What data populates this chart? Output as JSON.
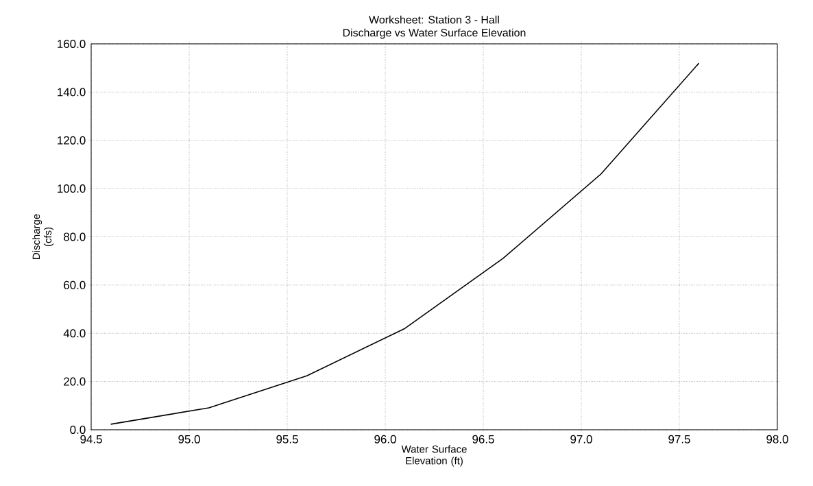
{
  "chart_data": {
    "type": "line",
    "title": "Worksheet: Station 3 - Hall",
    "subtitle": "Discharge vs Water Surface Elevation",
    "xlabel": "Water Surface Elevation (ft)",
    "ylabel": "Discharge (cfs)",
    "x": [
      94.6,
      95.1,
      95.6,
      96.1,
      96.6,
      97.1,
      97.6
    ],
    "series": [
      {
        "color": "#000000",
        "values": [
          2.3,
          9.1,
          22.4,
          42,
          71,
          106,
          152
        ]
      }
    ],
    "xlim": [
      94.5,
      98.0
    ],
    "ylim": [
      0,
      160
    ],
    "xticks": [
      {
        "value": 94.5,
        "label": "94.5"
      },
      {
        "value": 95.0,
        "label": "95.0"
      },
      {
        "value": 95.5,
        "label": "95.5"
      },
      {
        "value": 96.0,
        "label": "96.0"
      },
      {
        "value": 96.5,
        "label": "96.5"
      },
      {
        "value": 97.0,
        "label": "97.0"
      },
      {
        "value": 97.5,
        "label": "97.5"
      },
      {
        "value": 98.0,
        "label": "98.0"
      }
    ],
    "yticks": [
      {
        "value": 0,
        "label": "0.0"
      },
      {
        "value": 20,
        "label": "20.0"
      },
      {
        "value": 40,
        "label": "40.0"
      },
      {
        "value": 60,
        "label": "60.0"
      },
      {
        "value": 80,
        "label": "80.0"
      },
      {
        "value": 100,
        "label": "100.0"
      },
      {
        "value": 120,
        "label": "120.0"
      },
      {
        "value": 140,
        "label": "140.0"
      },
      {
        "value": 160,
        "label": "160.0"
      }
    ],
    "grid": true,
    "marker": "none",
    "line_style": "solid"
  }
}
